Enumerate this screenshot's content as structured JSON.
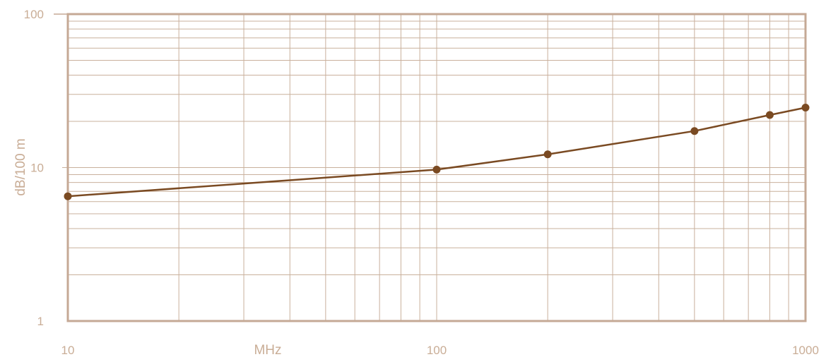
{
  "chart_data": {
    "type": "line",
    "title": "",
    "xlabel": "MHz",
    "ylabel": "dB/100 m",
    "x_scale": "log",
    "y_scale": "log",
    "xlim": [
      10,
      1000
    ],
    "ylim": [
      1,
      100
    ],
    "grid": true,
    "x_ticks": [
      "10",
      "100",
      "1000"
    ],
    "y_ticks": [
      "1",
      "10",
      "100"
    ],
    "series": [
      {
        "x": [
          10,
          100,
          200,
          500,
          800,
          1000
        ],
        "y": [
          6.5,
          9.7,
          12.2,
          17.3,
          22.0,
          24.6
        ]
      }
    ],
    "colors": {
      "line": "#7a4a22",
      "marker": "#7a4a22",
      "grid": "#c9b09c",
      "axis": "#c5a995",
      "text": "#c9ad96"
    }
  }
}
